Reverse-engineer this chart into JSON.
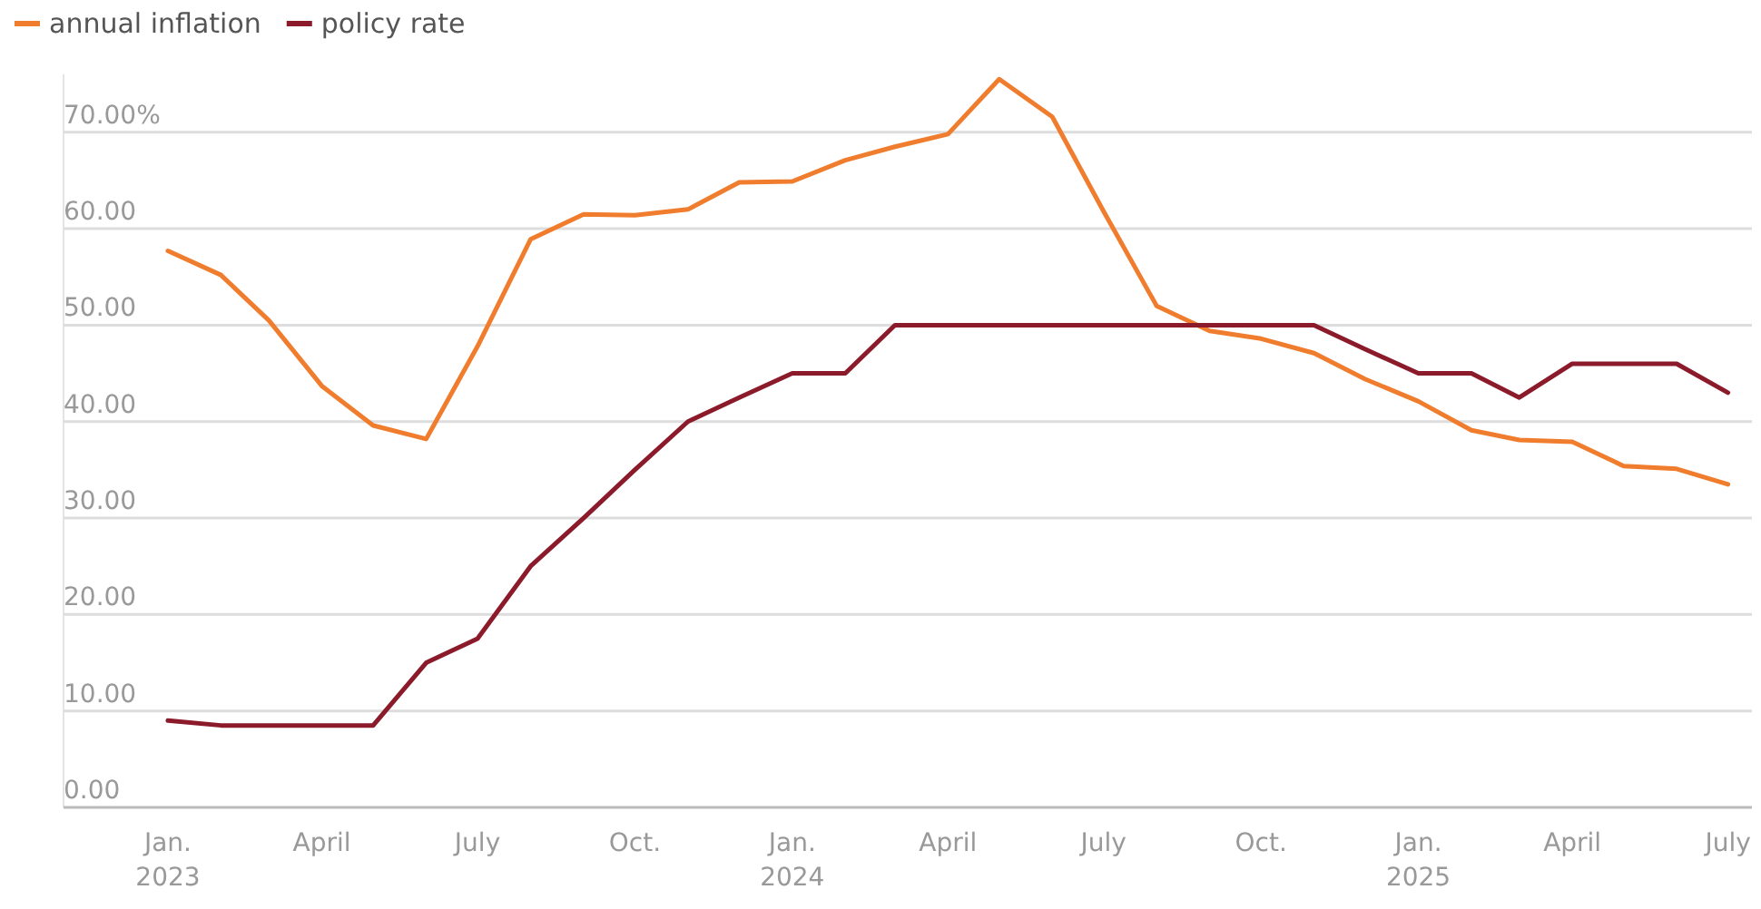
{
  "chart_data": {
    "type": "line",
    "x": [
      "2023-01",
      "2023-02",
      "2023-03",
      "2023-04",
      "2023-05",
      "2023-06",
      "2023-07",
      "2023-08",
      "2023-09",
      "2023-10",
      "2023-11",
      "2023-12",
      "2024-01",
      "2024-02",
      "2024-03",
      "2024-04",
      "2024-05",
      "2024-06",
      "2024-07",
      "2024-08",
      "2024-09",
      "2024-10",
      "2024-11",
      "2024-12",
      "2025-01",
      "2025-02",
      "2025-03",
      "2025-04",
      "2025-05",
      "2025-06",
      "2025-07"
    ],
    "series": [
      {
        "name": "annual inflation",
        "color": "#f07c2e",
        "values": [
          57.7,
          55.2,
          50.5,
          43.7,
          39.6,
          38.2,
          47.8,
          58.9,
          61.5,
          61.4,
          62.0,
          64.8,
          64.9,
          67.1,
          68.5,
          69.8,
          75.5,
          71.6,
          61.8,
          52.0,
          49.4,
          48.6,
          47.1,
          44.4,
          42.1,
          39.1,
          38.1,
          37.9,
          35.4,
          35.1,
          33.5
        ]
      },
      {
        "name": "policy rate",
        "color": "#8b1a2b",
        "values": [
          9,
          8.5,
          8.5,
          8.5,
          8.5,
          15,
          17.5,
          25,
          30,
          35,
          40,
          42.5,
          45,
          45,
          50,
          50,
          50,
          50,
          50,
          50,
          50,
          50,
          50,
          47.5,
          45,
          45,
          42.5,
          46,
          46,
          46,
          43
        ]
      }
    ],
    "xlim": [
      "2022-11",
      "2025-07-15"
    ],
    "xticks": [
      {
        "value": "2023-01",
        "label": "Jan.\n2023"
      },
      {
        "value": "2023-04",
        "label": "April"
      },
      {
        "value": "2023-07",
        "label": "July"
      },
      {
        "value": "2023-10",
        "label": "Oct."
      },
      {
        "value": "2024-01",
        "label": "Jan.\n2024"
      },
      {
        "value": "2024-04",
        "label": "April"
      },
      {
        "value": "2024-07",
        "label": "July"
      },
      {
        "value": "2024-10",
        "label": "Oct."
      },
      {
        "value": "2025-01",
        "label": "Jan.\n2025"
      },
      {
        "value": "2025-04",
        "label": "April"
      },
      {
        "value": "2025-07",
        "label": "July"
      }
    ],
    "ylim": [
      0,
      76
    ],
    "yticks": [
      {
        "value": 0,
        "label": "0.00"
      },
      {
        "value": 10,
        "label": "10.00"
      },
      {
        "value": 20,
        "label": "20.00"
      },
      {
        "value": 30,
        "label": "30.00"
      },
      {
        "value": 40,
        "label": "40.00"
      },
      {
        "value": 50,
        "label": "50.00"
      },
      {
        "value": 60,
        "label": "60.00"
      },
      {
        "value": 70,
        "label": "70.00%"
      }
    ],
    "grid": "y",
    "legend": "top left",
    "marker": "none",
    "line_style": "solid"
  }
}
